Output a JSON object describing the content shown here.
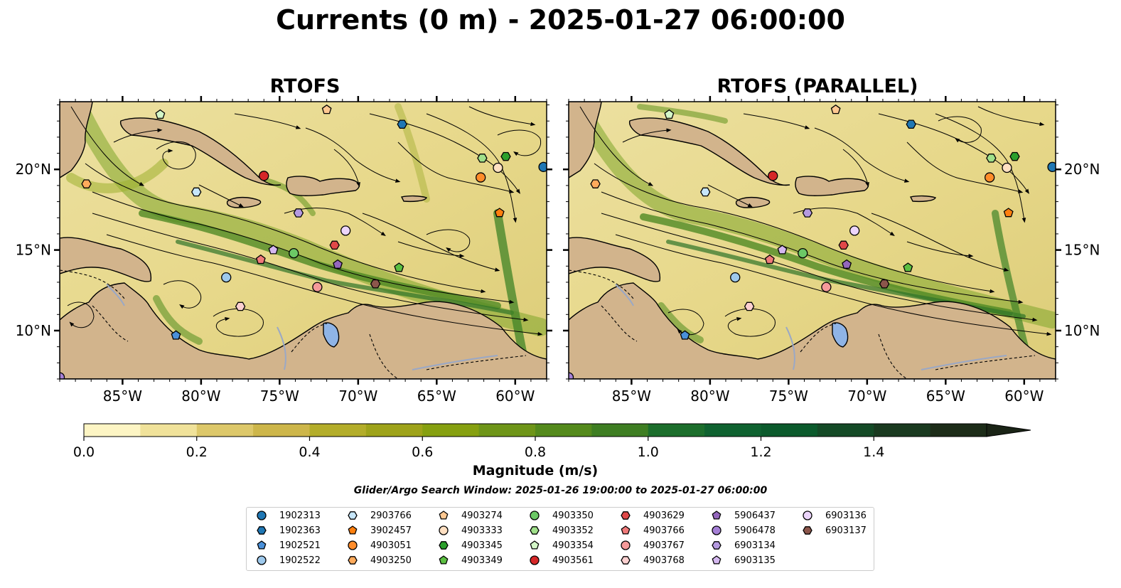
{
  "title": "Currents (0 m) - 2025-01-27 06:00:00",
  "panels": [
    {
      "title": "RTOFS"
    },
    {
      "title": "RTOFS (PARALLEL)"
    }
  ],
  "axes": {
    "lon_ticks": [
      "85°W",
      "80°W",
      "75°W",
      "70°W",
      "65°W",
      "60°W"
    ],
    "lat_ticks": [
      "20°N",
      "15°N",
      "10°N"
    ],
    "lon_range": [
      -89,
      -58
    ],
    "lat_range": [
      7,
      24.2
    ]
  },
  "colorbar": {
    "label": "Magnitude (m/s)",
    "ticks": [
      "0.0",
      "0.2",
      "0.4",
      "0.6",
      "0.8",
      "1.0",
      "1.2",
      "1.4"
    ],
    "range": [
      0,
      1.6
    ],
    "colors": [
      "#fdf5c4",
      "#f0e29a",
      "#ddc86a",
      "#cdb64a",
      "#b3ad2a",
      "#9ea31a",
      "#86a010",
      "#6e9518",
      "#548a1c",
      "#3e7e22",
      "#1c6e2c",
      "#0f6230",
      "#0b5a2c",
      "#144a26",
      "#1a3a20",
      "#1c2c18"
    ]
  },
  "search_window": "Glider/Argo Search Window: 2025-01-26 19:00:00 to 2025-01-27 06:00:00",
  "legend": [
    {
      "id": "1902313",
      "marker": "circle",
      "color": "#1f77b4"
    },
    {
      "id": "1902363",
      "marker": "hexagon",
      "color": "#1f77b4"
    },
    {
      "id": "1902521",
      "marker": "pentagon",
      "color": "#4a90d9"
    },
    {
      "id": "1902522",
      "marker": "circle",
      "color": "#9ec9ec"
    },
    {
      "id": "2903766",
      "marker": "hexagon",
      "color": "#c6e6fa"
    },
    {
      "id": "3902457",
      "marker": "pentagon",
      "color": "#ff7f0e"
    },
    {
      "id": "4903051",
      "marker": "circle",
      "color": "#ff8c2a"
    },
    {
      "id": "4903250",
      "marker": "hexagon",
      "color": "#ffab5c"
    },
    {
      "id": "4903274",
      "marker": "pentagon",
      "color": "#ffc891"
    },
    {
      "id": "4903333",
      "marker": "circle",
      "color": "#ffe0c2"
    },
    {
      "id": "4903345",
      "marker": "hexagon",
      "color": "#2ca02c"
    },
    {
      "id": "4903349",
      "marker": "pentagon",
      "color": "#5cbf42"
    },
    {
      "id": "4903350",
      "marker": "circle",
      "color": "#6cc866"
    },
    {
      "id": "4903352",
      "marker": "hexagon",
      "color": "#a0e08a"
    },
    {
      "id": "4903354",
      "marker": "pentagon",
      "color": "#d4f7c8"
    },
    {
      "id": "4903561",
      "marker": "circle",
      "color": "#d62728"
    },
    {
      "id": "4903629",
      "marker": "hexagon",
      "color": "#e04848"
    },
    {
      "id": "4903766",
      "marker": "pentagon",
      "color": "#f07a7a"
    },
    {
      "id": "4903767",
      "marker": "circle",
      "color": "#f59a9a"
    },
    {
      "id": "4903768",
      "marker": "hexagon",
      "color": "#fcd0d0"
    },
    {
      "id": "5906437",
      "marker": "pentagon",
      "color": "#9467bd"
    },
    {
      "id": "5906478",
      "marker": "circle",
      "color": "#a57fd6"
    },
    {
      "id": "6903134",
      "marker": "hexagon",
      "color": "#b59ae0"
    },
    {
      "id": "6903135",
      "marker": "pentagon",
      "color": "#d5b8f0"
    },
    {
      "id": "6903136",
      "marker": "circle",
      "color": "#ecd5fb"
    },
    {
      "id": "6903137",
      "marker": "hexagon",
      "color": "#8c564b"
    }
  ],
  "floats": [
    {
      "id": "1902313",
      "lon": -58.2,
      "lat": 20.15
    },
    {
      "id": "1902363",
      "lon": -67.2,
      "lat": 22.8
    },
    {
      "id": "1902521",
      "lon": -81.6,
      "lat": 9.7
    },
    {
      "id": "1902522",
      "lon": -78.4,
      "lat": 13.3
    },
    {
      "id": "2903766",
      "lon": -80.3,
      "lat": 18.6
    },
    {
      "id": "3902457",
      "lon": -61.0,
      "lat": 17.3
    },
    {
      "id": "4903051",
      "lon": -62.2,
      "lat": 19.5
    },
    {
      "id": "4903250",
      "lon": -87.3,
      "lat": 19.1
    },
    {
      "id": "4903274",
      "lon": -72.0,
      "lat": 23.7
    },
    {
      "id": "4903333",
      "lon": -61.1,
      "lat": 20.1
    },
    {
      "id": "4903345",
      "lon": -60.6,
      "lat": 20.8
    },
    {
      "id": "4903349",
      "lon": -67.4,
      "lat": 13.9
    },
    {
      "id": "4903350",
      "lon": -74.1,
      "lat": 14.8
    },
    {
      "id": "4903352",
      "lon": -62.1,
      "lat": 20.7
    },
    {
      "id": "4903354",
      "lon": -82.6,
      "lat": 23.4
    },
    {
      "id": "4903561",
      "lon": -76.0,
      "lat": 19.6
    },
    {
      "id": "4903629",
      "lon": -71.5,
      "lat": 15.3
    },
    {
      "id": "4903766",
      "lon": -76.2,
      "lat": 14.4
    },
    {
      "id": "4903767",
      "lon": -72.6,
      "lat": 12.7
    },
    {
      "id": "4903768",
      "lon": -77.5,
      "lat": 11.5
    },
    {
      "id": "5906437",
      "lon": -71.3,
      "lat": 14.1
    },
    {
      "id": "5906478",
      "lon": -89.0,
      "lat": 7.1
    },
    {
      "id": "6903134",
      "lon": -73.8,
      "lat": 17.3
    },
    {
      "id": "6903135",
      "lon": -75.4,
      "lat": 15.0
    },
    {
      "id": "6903136",
      "lon": -70.8,
      "lat": 16.2
    },
    {
      "id": "6903137",
      "lon": -68.9,
      "lat": 12.9
    }
  ]
}
